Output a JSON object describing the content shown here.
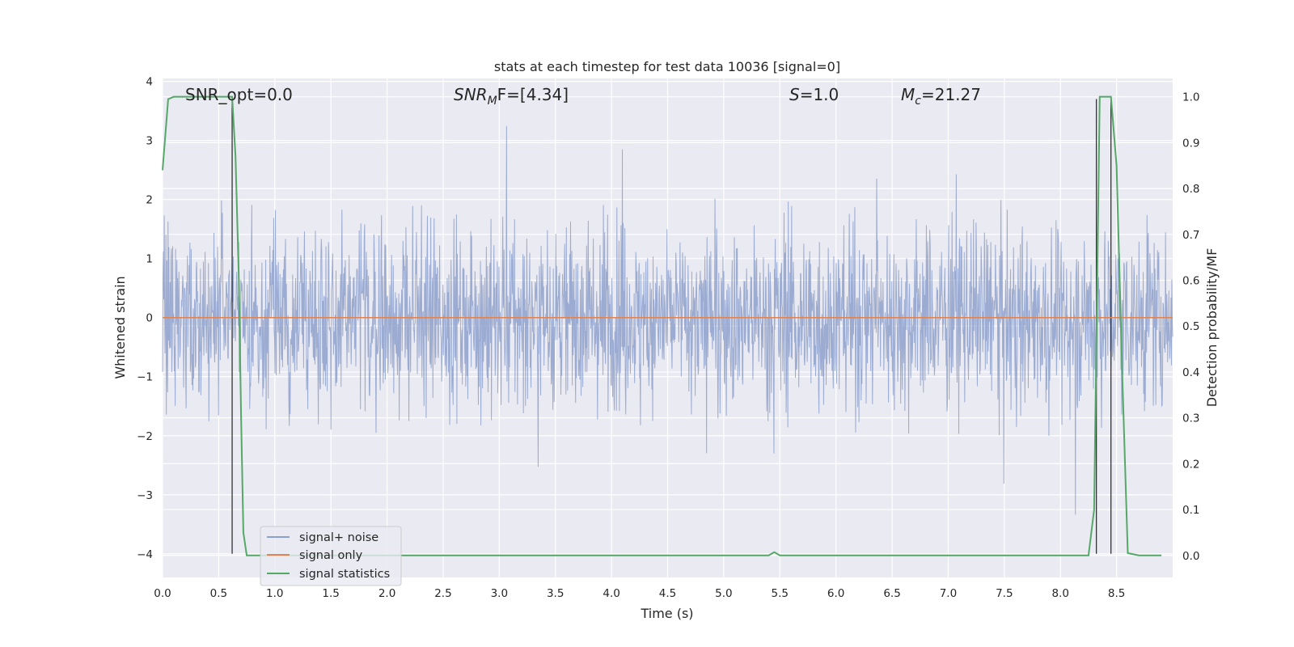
{
  "chart_data": {
    "type": "line",
    "title": "stats at each timestep for test data 10036 [signal=0]",
    "xlabel": "Time (s)",
    "ylabel": "Whitened strain",
    "y2label": "Detection probability/MF",
    "xlim": [
      0.0,
      9.0
    ],
    "ylim": [
      -4.4,
      4.05
    ],
    "y2lim": [
      -0.048,
      1.04
    ],
    "xticks": [
      "0.0",
      "0.5",
      "1.0",
      "1.5",
      "2.0",
      "2.5",
      "3.0",
      "3.5",
      "4.0",
      "4.5",
      "5.0",
      "5.5",
      "6.0",
      "6.5",
      "7.0",
      "7.5",
      "8.0",
      "8.5"
    ],
    "yticks": [
      "4",
      "3",
      "2",
      "1",
      "0",
      "−1",
      "−2",
      "−3",
      "−4"
    ],
    "y2ticks": [
      "1.0",
      "0.9",
      "0.8",
      "0.7",
      "0.6",
      "0.5",
      "0.4",
      "0.3",
      "0.2",
      "0.1",
      "0.0"
    ],
    "grid": true,
    "legend_position": "lower-left",
    "colors": {
      "noise": "#8da0cb",
      "signal_only": "#dd8452",
      "statistics": "#55a868",
      "markers": "#333333",
      "background": "#eaeaf2",
      "grid": "#ffffff"
    },
    "series": [
      {
        "name": "signal+ noise",
        "axis": "left",
        "description": "dense whitened noise trace, values mostly within about ±2, occasional spikes to about ±3.7"
      },
      {
        "name": "signal only",
        "axis": "left",
        "x": [
          0.0,
          9.0
        ],
        "y": [
          0.0,
          0.0
        ]
      },
      {
        "name": "signal statistics",
        "axis": "right",
        "x": [
          0.0,
          0.05,
          0.1,
          0.15,
          0.2,
          0.6,
          0.62,
          0.65,
          0.68,
          0.7,
          0.72,
          0.75,
          5.35,
          5.4,
          5.45,
          5.5,
          6.4,
          6.5,
          8.25,
          8.3,
          8.35,
          8.4,
          8.45,
          8.5,
          8.55,
          8.6,
          8.7,
          8.9
        ],
        "y": [
          0.84,
          0.995,
          1.0,
          1.0,
          1.0,
          1.0,
          1.0,
          0.87,
          0.6,
          0.3,
          0.05,
          0.0,
          0.0,
          0.0,
          0.007,
          0.0,
          0.0,
          0.0,
          0.0,
          0.1,
          1.0,
          1.0,
          1.0,
          0.85,
          0.4,
          0.005,
          0.0,
          0.0
        ]
      }
    ],
    "markers_x": [
      0.62,
      8.32,
      8.45
    ],
    "annotations": [
      {
        "id": "snr-opt",
        "text": "SNR_opt=0.0"
      },
      {
        "id": "snr-mf",
        "base": "SNR",
        "sub": "M",
        "rest": "F=[4.34]"
      },
      {
        "id": "s",
        "base": "S",
        "rest": "=1.0"
      },
      {
        "id": "mc",
        "base": "M",
        "sub": "c",
        "rest": "=21.27"
      }
    ]
  }
}
